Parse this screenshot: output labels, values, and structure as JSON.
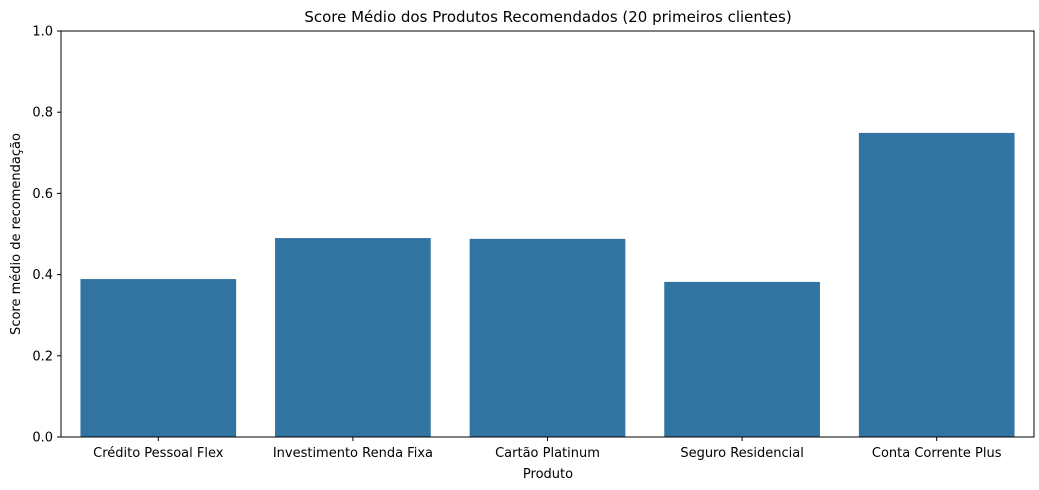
{
  "chart_data": {
    "type": "bar",
    "title": "Score Médio dos Produtos Recomendados (20 primeiros clientes)",
    "xlabel": "Produto",
    "ylabel": "Score médio de recomendação",
    "categories": [
      "Crédito Pessoal Flex",
      "Investimento Renda Fixa",
      "Cartão Platinum",
      "Seguro Residencial",
      "Conta Corrente Plus"
    ],
    "values": [
      0.389,
      0.49,
      0.488,
      0.382,
      0.749
    ],
    "ylim": [
      0,
      1.0
    ],
    "yticks": [
      "0.0",
      "0.2",
      "0.4",
      "0.6",
      "0.8",
      "1.0"
    ],
    "grid": false,
    "bar_color": "#3274a1"
  }
}
